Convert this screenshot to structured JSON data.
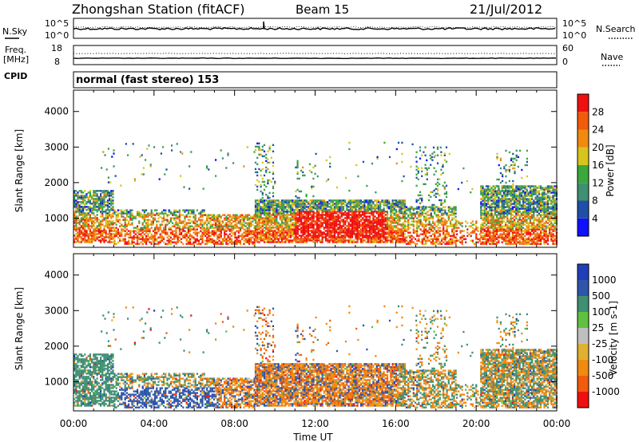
{
  "header": {
    "station": "Zhongshan Station (fitACF)",
    "beam": "Beam 15",
    "date": "21/Jul/2012"
  },
  "panels": {
    "nsky_label": "N.Sky",
    "nsky_ticks": [
      "10^5",
      "10^0"
    ],
    "nsearch_label": "N.Search",
    "nsearch_ticks": [
      "10^5",
      "10^0"
    ],
    "freq_label": "Freq.",
    "freq_unit": "[MHz]",
    "freq_ticks": [
      "18",
      "8"
    ],
    "nave_label": "Nave",
    "nave_ticks": [
      "60",
      "0"
    ],
    "cpid_label": "CPID",
    "cpid_text": "normal (fast stereo) 153"
  },
  "colors": {
    "power": [
      "#1010ff",
      "#1f4fa8",
      "#3f8f72",
      "#3aa83a",
      "#d8c41c",
      "#f08a10",
      "#f25a0c",
      "#ef1010"
    ],
    "velocity": [
      "#ef1010",
      "#f25a0c",
      "#f08a10",
      "#e0b030",
      "#bfbfbf",
      "#60c040",
      "#3f8f72",
      "#2e55aa",
      "#1f3fb8"
    ]
  },
  "chart_data": [
    {
      "type": "heatmap",
      "name": "power",
      "xlabel": "",
      "ylabel": "Slant Range [km]",
      "x_ticks": [
        "00:00",
        "04:00",
        "08:00",
        "12:00",
        "16:00",
        "20:00",
        "00:00"
      ],
      "y_ticks": [
        1000,
        2000,
        3000,
        4000
      ],
      "xlim": [
        0,
        24
      ],
      "ylim": [
        180,
        4600
      ],
      "colorbar_label": "Power [dB]",
      "colorbar_ticks": [
        "4",
        "8",
        "12",
        "16",
        "20",
        "24",
        "28"
      ]
    },
    {
      "type": "heatmap",
      "name": "velocity",
      "xlabel": "Time UT",
      "ylabel": "Slant Range [km]",
      "x_ticks": [
        "00:00",
        "04:00",
        "08:00",
        "12:00",
        "16:00",
        "20:00",
        "00:00"
      ],
      "y_ticks": [
        1000,
        2000,
        3000,
        4000
      ],
      "xlim": [
        0,
        24
      ],
      "ylim": [
        180,
        4600
      ],
      "colorbar_label": "Velocity [m s-1]",
      "colorbar_ticks": [
        "1000",
        "500",
        "100",
        "25",
        "-25",
        "-100",
        "-500",
        "-1000"
      ]
    }
  ]
}
